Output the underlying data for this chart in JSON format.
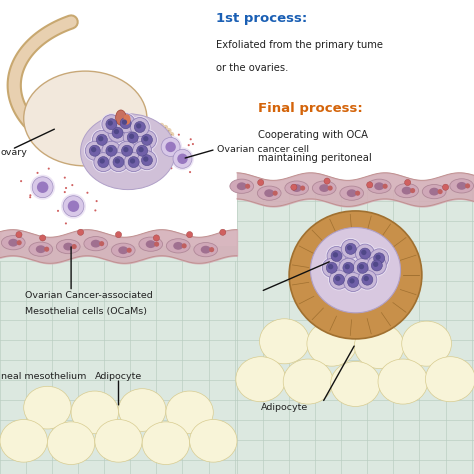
{
  "background_color": "#ffffff",
  "title_1st": "1st process:",
  "text_1st_line1": "Exfoliated from the primary tume",
  "text_1st_line2": "or the ovaries.",
  "title_final": "Final process:",
  "text_final_line1": "Cooperating with OCA",
  "text_final_line2": "maintaining peritoneal",
  "label_ovary": "ovary",
  "label_cancer_cell": "Ovarian cancer cell",
  "label_ocams": "Ovarian Cancer-associated\nMesothelial cells (OCaMs)",
  "label_mesothelium": "neal mesothelium",
  "label_adipocyte": "Adipocyte",
  "color_1st": "#1a5fb4",
  "color_final": "#d4640a",
  "color_text": "#222222",
  "color_cell_body": "#c8b8d8",
  "color_cell_dark": "#9080b8",
  "color_nucleus": "#7060a8",
  "color_nucleus_inner": "#504888",
  "color_meso_cell": "#c8a0b0",
  "color_meso_layer": "#d4b0b8",
  "color_meso_edge": "#c09090",
  "color_tissue_bg": "#dce8e0",
  "color_tissue_grid": "#b8ccc0",
  "color_ovary_body": "#f2e8dc",
  "color_ovary_edge": "#c8a878",
  "color_tube": "#e8d0b0",
  "color_tube_edge": "#c8a870",
  "color_wrap_outer": "#c89050",
  "color_wrap_inner": "#d4a060",
  "color_adipo": "#f8f4d8",
  "color_adipo_edge": "#d8cc90",
  "color_red_dot": "#d06060",
  "color_arrow": "#111111",
  "color_rupture": "#c87060",
  "figsize": [
    4.74,
    4.74
  ],
  "dpi": 100
}
